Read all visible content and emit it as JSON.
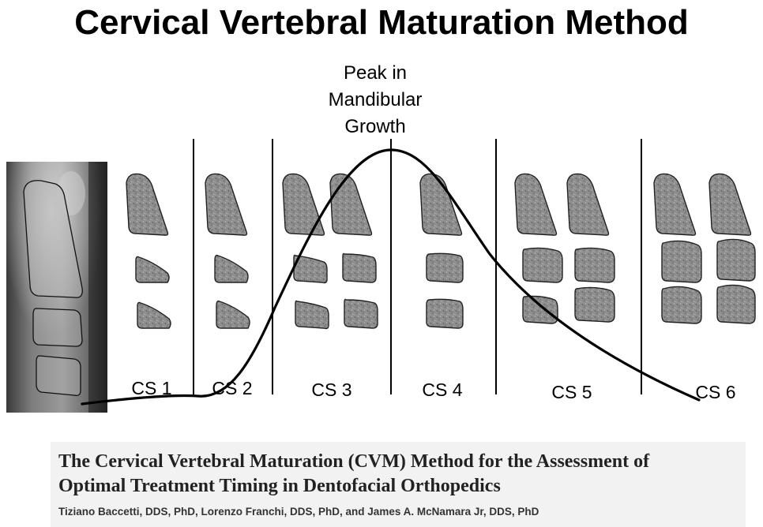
{
  "title": "Cervical Vertebral Maturation Method",
  "peak_annotation": [
    "Peak in",
    "Mandibular",
    "Growth"
  ],
  "stages": [
    "CS 1",
    "CS 2",
    "CS 3",
    "CS 4",
    "CS 5",
    "CS 6"
  ],
  "colors": {
    "vertebra_fill": "#8e8e8e",
    "vertebra_outline": "#222222",
    "curve": "#000000",
    "citation_bg": "#f2f2f2"
  },
  "citation": {
    "title_line1": "The Cervical Vertebral Maturation (CVM) Method for the Assessment of",
    "title_line2": "Optimal Treatment Timing in Dentofacial Orthopedics",
    "authors": "Tiziano Baccetti, DDS, PhD, Lorenzo Franchi, DDS, PhD, and James A. McNamara Jr, DDS, PhD"
  }
}
